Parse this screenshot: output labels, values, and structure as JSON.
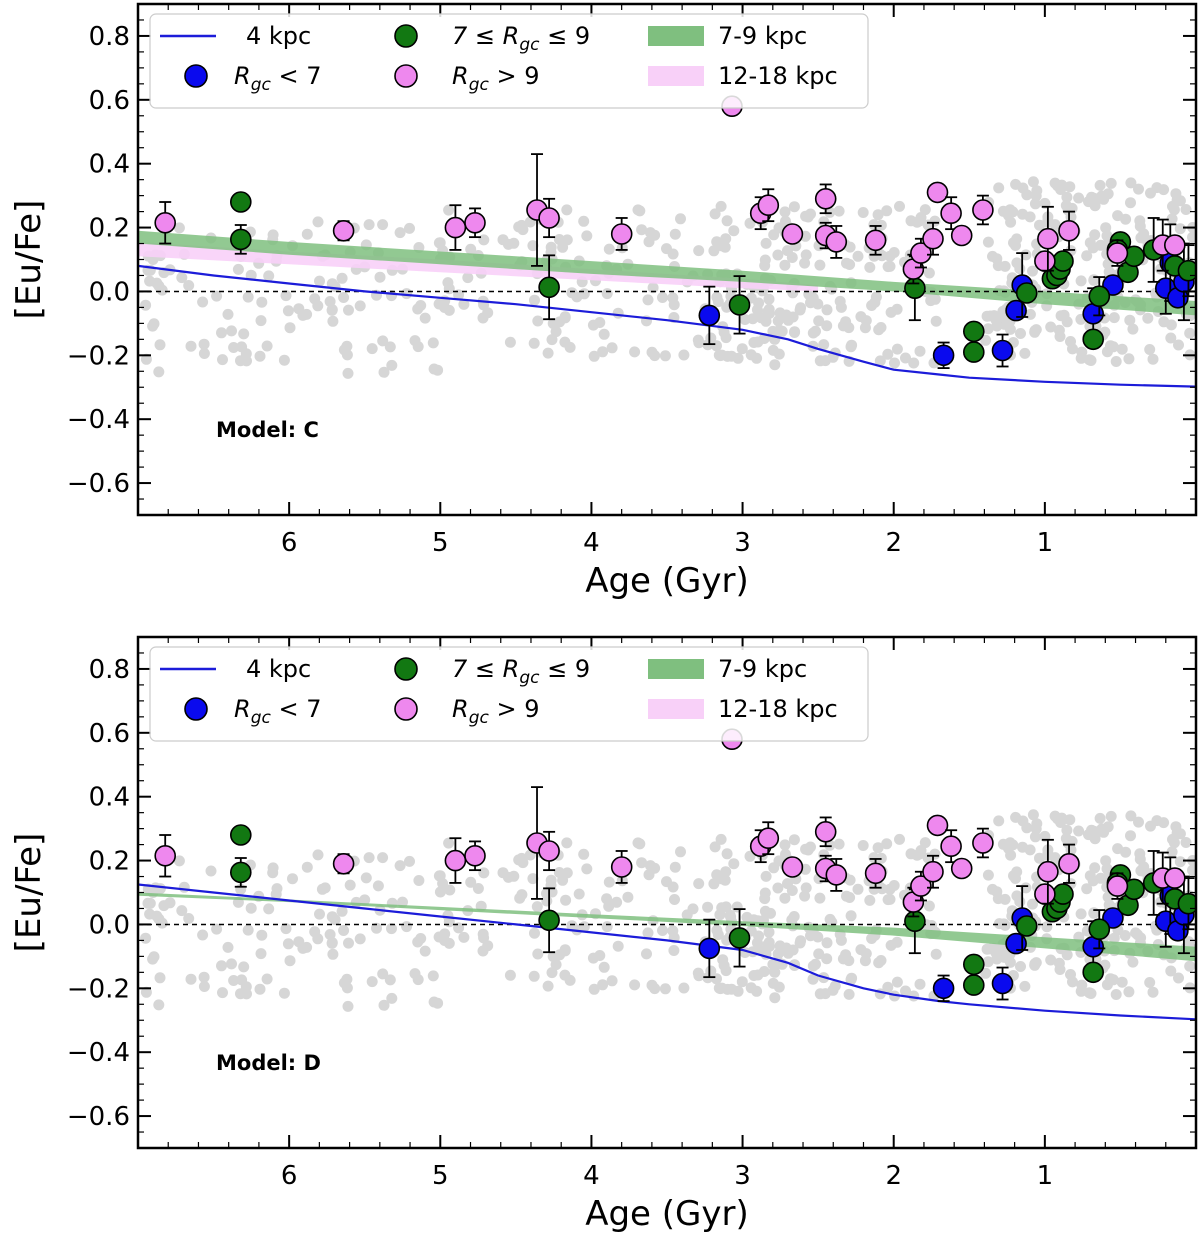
{
  "chart_data": [
    {
      "type": "scatter",
      "panel": "top",
      "model_label": "Model: C",
      "xlabel": "Age (Gyr)",
      "ylabel": "[Eu/Fe]",
      "xlim": [
        7,
        0
      ],
      "ylim": [
        -0.7,
        0.9
      ],
      "xticks": [
        6,
        5,
        4,
        3,
        2,
        1
      ],
      "yticks": [
        0.8,
        0.6,
        0.4,
        0.2,
        0.0,
        -0.2,
        -0.4,
        -0.6
      ],
      "ytick_labels": [
        "0.8",
        "0.6",
        "0.4",
        "0.2",
        "0.0",
        "−0.2",
        "−0.4",
        "−0.6"
      ],
      "legend": {
        "line_4kpc": "4 kpc",
        "rgc_lt7_prefix": "R",
        "rgc_lt7_sub": "gc",
        "rgc_lt7_suffix": " < 7",
        "rgc_mid_prefix": "7 ≤ R",
        "rgc_mid_sub": "gc",
        "rgc_mid_suffix": " ≤ 9",
        "rgc_gt9_prefix": "R",
        "rgc_gt9_sub": "gc",
        "rgc_gt9_suffix": " > 9",
        "band_7_9": "7-9 kpc",
        "band_12_18": "12-18 kpc"
      },
      "model_4kpc": [
        [
          7.0,
          0.08
        ],
        [
          6.5,
          0.05
        ],
        [
          6.0,
          0.025
        ],
        [
          5.5,
          0.0
        ],
        [
          5.0,
          -0.02
        ],
        [
          4.5,
          -0.04
        ],
        [
          4.0,
          -0.065
        ],
        [
          3.5,
          -0.09
        ],
        [
          3.0,
          -0.12
        ],
        [
          2.7,
          -0.15
        ],
        [
          2.5,
          -0.18
        ],
        [
          2.2,
          -0.22
        ],
        [
          2.0,
          -0.245
        ],
        [
          1.7,
          -0.26
        ],
        [
          1.5,
          -0.27
        ],
        [
          1.0,
          -0.283
        ],
        [
          0.5,
          -0.292
        ],
        [
          0.0,
          -0.298
        ]
      ],
      "band_7_9_kpc": {
        "x": [
          7.0,
          6.0,
          5.0,
          4.0,
          3.0,
          2.0,
          1.0,
          0.0
        ],
        "lower": [
          0.15,
          0.115,
          0.085,
          0.055,
          0.03,
          0.0,
          -0.04,
          -0.075
        ],
        "upper": [
          0.19,
          0.155,
          0.125,
          0.095,
          0.065,
          0.03,
          0.0,
          -0.03
        ]
      },
      "band_12_18_kpc": {
        "x": [
          7.0,
          6.0,
          5.0,
          4.0,
          3.0,
          2.5
        ],
        "lower": [
          0.11,
          0.085,
          0.06,
          0.035,
          0.01,
          0.0
        ],
        "upper": [
          0.155,
          0.125,
          0.1,
          0.07,
          0.04,
          0.02
        ]
      },
      "reference_line_y": 0.0
    },
    {
      "type": "scatter",
      "panel": "bottom",
      "model_label": "Model: D",
      "xlabel": "Age (Gyr)",
      "ylabel": "[Eu/Fe]",
      "xlim": [
        7,
        0
      ],
      "ylim": [
        -0.7,
        0.9
      ],
      "xticks": [
        6,
        5,
        4,
        3,
        2,
        1
      ],
      "yticks": [
        0.8,
        0.6,
        0.4,
        0.2,
        0.0,
        -0.2,
        -0.4,
        -0.6
      ],
      "ytick_labels": [
        "0.8",
        "0.6",
        "0.4",
        "0.2",
        "0.0",
        "−0.2",
        "−0.4",
        "−0.6"
      ],
      "legend": {
        "line_4kpc": "4 kpc",
        "rgc_lt7_prefix": "R",
        "rgc_lt7_sub": "gc",
        "rgc_lt7_suffix": " < 7",
        "rgc_mid_prefix": "7 ≤ R",
        "rgc_mid_sub": "gc",
        "rgc_mid_suffix": " ≤ 9",
        "rgc_gt9_prefix": "R",
        "rgc_gt9_sub": "gc",
        "rgc_gt9_suffix": " > 9",
        "band_7_9": "7-9 kpc",
        "band_12_18": "12-18 kpc"
      },
      "model_4kpc": [
        [
          7.0,
          0.125
        ],
        [
          6.5,
          0.1
        ],
        [
          6.0,
          0.075
        ],
        [
          5.5,
          0.05
        ],
        [
          5.0,
          0.025
        ],
        [
          4.5,
          0.0
        ],
        [
          4.0,
          -0.025
        ],
        [
          3.5,
          -0.05
        ],
        [
          3.0,
          -0.08
        ],
        [
          2.7,
          -0.12
        ],
        [
          2.5,
          -0.16
        ],
        [
          2.2,
          -0.2
        ],
        [
          2.0,
          -0.22
        ],
        [
          1.7,
          -0.24
        ],
        [
          1.5,
          -0.25
        ],
        [
          1.0,
          -0.27
        ],
        [
          0.5,
          -0.285
        ],
        [
          0.0,
          -0.297
        ]
      ],
      "band_7_9_kpc": {
        "x": [
          7.0,
          6.0,
          5.0,
          4.0,
          3.0,
          2.0,
          1.0,
          0.0
        ],
        "lower": [
          0.09,
          0.07,
          0.045,
          0.02,
          -0.005,
          -0.035,
          -0.075,
          -0.115
        ],
        "upper": [
          0.1,
          0.078,
          0.055,
          0.032,
          0.01,
          -0.01,
          -0.04,
          -0.07
        ]
      },
      "band_12_18_kpc": null,
      "reference_line_y": 0.0
    }
  ],
  "observed_clusters": {
    "blue_rgc_lt7": [
      {
        "age": 3.22,
        "eufe": -0.075,
        "err": 0.09
      },
      {
        "age": 1.67,
        "eufe": -0.2,
        "err": 0.04
      },
      {
        "age": 1.28,
        "eufe": -0.185,
        "err": 0.05
      },
      {
        "age": 1.19,
        "eufe": -0.06,
        "err": 0.0
      },
      {
        "age": 1.15,
        "eufe": 0.02,
        "err": 0.1
      },
      {
        "age": 0.68,
        "eufe": -0.07,
        "err": 0.08
      },
      {
        "age": 0.55,
        "eufe": 0.02,
        "err": 0.0
      },
      {
        "age": 0.2,
        "eufe": 0.01,
        "err": 0.08
      },
      {
        "age": 0.17,
        "eufe": 0.09,
        "err": 0.12
      },
      {
        "age": 0.12,
        "eufe": -0.02,
        "err": 0.0
      },
      {
        "age": 0.08,
        "eufe": 0.03,
        "err": 0.12
      }
    ],
    "green_rgc_7_9": [
      {
        "age": 6.32,
        "eufe": 0.28,
        "err": 0.0
      },
      {
        "age": 6.32,
        "eufe": 0.163,
        "err": 0.045
      },
      {
        "age": 4.28,
        "eufe": 0.013,
        "err": 0.1
      },
      {
        "age": 3.02,
        "eufe": -0.042,
        "err": 0.09
      },
      {
        "age": 1.86,
        "eufe": 0.01,
        "err": 0.1
      },
      {
        "age": 1.47,
        "eufe": -0.125,
        "err": 0.0
      },
      {
        "age": 1.47,
        "eufe": -0.19,
        "err": 0.0
      },
      {
        "age": 1.12,
        "eufe": -0.005,
        "err": 0.0
      },
      {
        "age": 0.95,
        "eufe": 0.04,
        "err": 0.0
      },
      {
        "age": 0.92,
        "eufe": 0.05,
        "err": 0.0
      },
      {
        "age": 0.9,
        "eufe": 0.07,
        "err": 0.0
      },
      {
        "age": 0.88,
        "eufe": 0.095,
        "err": 0.0
      },
      {
        "age": 0.68,
        "eufe": -0.15,
        "err": 0.0
      },
      {
        "age": 0.64,
        "eufe": -0.015,
        "err": 0.06
      },
      {
        "age": 0.5,
        "eufe": 0.155,
        "err": 0.0
      },
      {
        "age": 0.52,
        "eufe": 0.13,
        "err": 0.0
      },
      {
        "age": 0.45,
        "eufe": 0.06,
        "err": 0.0
      },
      {
        "age": 0.41,
        "eufe": 0.11,
        "err": 0.0
      },
      {
        "age": 0.28,
        "eufe": 0.13,
        "err": 0.1
      },
      {
        "age": 0.14,
        "eufe": 0.08,
        "err": 0.0
      },
      {
        "age": 0.05,
        "eufe": 0.065,
        "err": 0.08
      }
    ],
    "pink_rgc_gt9": [
      {
        "age": 6.82,
        "eufe": 0.215,
        "err": 0.065
      },
      {
        "age": 5.64,
        "eufe": 0.19,
        "err": 0.03
      },
      {
        "age": 4.9,
        "eufe": 0.2,
        "err": 0.07
      },
      {
        "age": 4.77,
        "eufe": 0.215,
        "err": 0.045
      },
      {
        "age": 4.36,
        "eufe": 0.255,
        "err": 0.175
      },
      {
        "age": 4.28,
        "eufe": 0.23,
        "err": 0.06
      },
      {
        "age": 3.8,
        "eufe": 0.18,
        "err": 0.05
      },
      {
        "age": 3.07,
        "eufe": 0.58,
        "err": 0.0
      },
      {
        "age": 2.88,
        "eufe": 0.245,
        "err": 0.05
      },
      {
        "age": 2.83,
        "eufe": 0.27,
        "err": 0.05
      },
      {
        "age": 2.67,
        "eufe": 0.18,
        "err": 0.0
      },
      {
        "age": 2.45,
        "eufe": 0.29,
        "err": 0.045
      },
      {
        "age": 2.45,
        "eufe": 0.175,
        "err": 0.04
      },
      {
        "age": 2.38,
        "eufe": 0.155,
        "err": 0.05
      },
      {
        "age": 2.12,
        "eufe": 0.16,
        "err": 0.045
      },
      {
        "age": 1.87,
        "eufe": 0.07,
        "err": 0.045
      },
      {
        "age": 1.82,
        "eufe": 0.12,
        "err": 0.045
      },
      {
        "age": 1.74,
        "eufe": 0.165,
        "err": 0.05
      },
      {
        "age": 1.71,
        "eufe": 0.31,
        "err": 0.0
      },
      {
        "age": 1.62,
        "eufe": 0.245,
        "err": 0.05
      },
      {
        "age": 1.55,
        "eufe": 0.175,
        "err": 0.0
      },
      {
        "age": 1.41,
        "eufe": 0.255,
        "err": 0.045
      },
      {
        "age": 1.0,
        "eufe": 0.095,
        "err": 0.0
      },
      {
        "age": 0.98,
        "eufe": 0.165,
        "err": 0.1
      },
      {
        "age": 0.84,
        "eufe": 0.19,
        "err": 0.06
      },
      {
        "age": 0.52,
        "eufe": 0.12,
        "err": 0.04
      },
      {
        "age": 0.22,
        "eufe": 0.145,
        "err": 0.08
      },
      {
        "age": 0.14,
        "eufe": 0.145,
        "err": 0.0
      }
    ]
  },
  "colors": {
    "blue": "#0a0aee",
    "green": "#127812",
    "pink": "#ee88ee",
    "line_4kpc": "#1c1cd9",
    "band_7_9": "#7fbf7f",
    "band_12_18": "#f8d0f8",
    "field_stars": "#d6d6d6"
  }
}
